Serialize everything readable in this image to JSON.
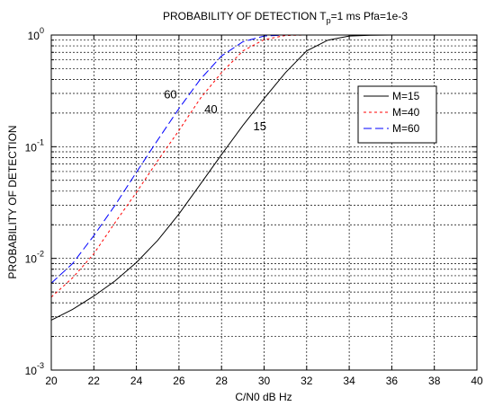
{
  "chart_data": {
    "type": "line",
    "title": {
      "main": "PROBABILITY OF DETECTION T",
      "sub": "p",
      "rest": "=1 ms  Pfa=1e-3"
    },
    "xlabel": "C/N0 dB Hz",
    "ylabel": "PROBABILITY OF DETECTION",
    "xlim": [
      20,
      40
    ],
    "ylim": [
      0.001,
      1
    ],
    "yscale": "log",
    "grid": true,
    "legend_position": "right-middle",
    "x_ticks": [
      "20",
      "22",
      "24",
      "26",
      "28",
      "30",
      "32",
      "34",
      "36",
      "38",
      "40"
    ],
    "y_ticks": [
      {
        "base": "10",
        "exp": "-3",
        "value": 0.001
      },
      {
        "base": "10",
        "exp": "-2",
        "value": 0.01
      },
      {
        "base": "10",
        "exp": "-1",
        "value": 0.1
      },
      {
        "base": "10",
        "exp": "0",
        "value": 1
      }
    ],
    "series": [
      {
        "name": "M=15",
        "color": "#000000",
        "dash": "solid",
        "x": [
          20,
          21,
          22,
          23,
          24,
          25,
          26,
          27,
          28,
          29,
          30,
          31,
          32,
          33,
          34,
          35,
          36,
          38,
          40
        ],
        "y": [
          0.0028,
          0.0035,
          0.0046,
          0.0063,
          0.0092,
          0.0145,
          0.025,
          0.046,
          0.085,
          0.155,
          0.27,
          0.46,
          0.72,
          0.9,
          0.98,
          0.997,
          1.0,
          1.0,
          1.0
        ]
      },
      {
        "name": "M=40",
        "color": "#ff0000",
        "dash": "dotted",
        "x": [
          20,
          21,
          22,
          23,
          24,
          25,
          26,
          27,
          28,
          29,
          30,
          31,
          32,
          34,
          36,
          38,
          40
        ],
        "y": [
          0.0045,
          0.0067,
          0.011,
          0.021,
          0.039,
          0.075,
          0.14,
          0.27,
          0.46,
          0.72,
          0.91,
          0.99,
          1.0,
          1.0,
          1.0,
          1.0,
          1.0
        ]
      },
      {
        "name": "M=60",
        "color": "#0000ff",
        "dash": "dashed",
        "x": [
          20,
          21,
          22,
          23,
          24,
          25,
          26,
          27,
          28,
          29,
          30,
          31,
          32,
          34,
          36,
          38,
          40
        ],
        "y": [
          0.006,
          0.009,
          0.016,
          0.03,
          0.059,
          0.115,
          0.22,
          0.4,
          0.65,
          0.87,
          0.98,
          1.0,
          1.0,
          1.0,
          1.0,
          1.0,
          1.0
        ]
      }
    ],
    "annotations": [
      {
        "text": "60",
        "x": 25.6,
        "y": 0.27
      },
      {
        "text": "40",
        "x": 27.5,
        "y": 0.2
      },
      {
        "text": "15",
        "x": 29.8,
        "y": 0.14
      }
    ]
  }
}
